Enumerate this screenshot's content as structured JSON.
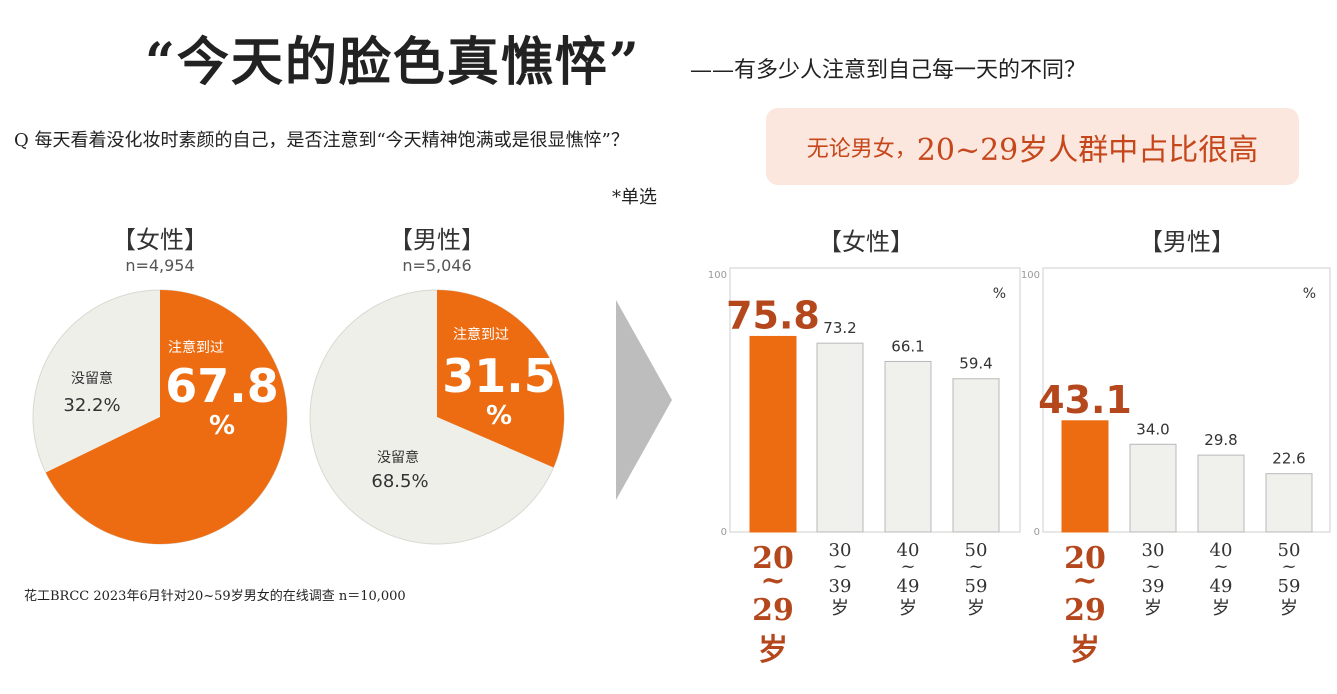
{
  "header": {
    "title": "“今天的脸色真憔悴”",
    "subtitle": "——有多少人注意到自己每一天的不同？"
  },
  "question": {
    "text": "Q   每天看着没化妆时素颜的自己，是否注意到“今天精神饱满或是很显憔悴”？",
    "note": "*单选"
  },
  "callout": {
    "prefix": "无论男女，",
    "highlight": "20~29岁人群中占比很高"
  },
  "source": "花工BRCC  2023年6月针对20~59岁男女的在线调查  n＝10,000",
  "colors": {
    "accent": "#ed6c12",
    "light": "#efefea",
    "bar_light": "#f0f0ec",
    "highlight_text": "#b5471c",
    "arrow": "#bdbdbd"
  },
  "chart_data": [
    {
      "type": "pie",
      "title": "【女性】",
      "subtitle": "n=4,954",
      "slices": [
        {
          "label": "注意到过",
          "value": 67.8,
          "display": "67.8",
          "unit": "%"
        },
        {
          "label": "没留意",
          "value": 32.2,
          "display": "32.2%"
        }
      ]
    },
    {
      "type": "pie",
      "title": "【男性】",
      "subtitle": "n=5,046",
      "slices": [
        {
          "label": "注意到过",
          "value": 31.5,
          "display": "31.5",
          "unit": "%"
        },
        {
          "label": "没留意",
          "value": 68.5,
          "display": "68.5%"
        }
      ]
    },
    {
      "type": "bar",
      "title": "【女性】",
      "unit_label": "%",
      "ylim": [
        0,
        100
      ],
      "yticks": [
        "100",
        "0"
      ],
      "categories": [
        {
          "lines": [
            "20",
            "~",
            "29",
            "岁"
          ],
          "highlight": true
        },
        {
          "lines": [
            "30",
            "~",
            "39",
            "岁"
          ],
          "highlight": false
        },
        {
          "lines": [
            "40",
            "~",
            "49",
            "岁"
          ],
          "highlight": false
        },
        {
          "lines": [
            "50",
            "~",
            "59",
            "岁"
          ],
          "highlight": false
        }
      ],
      "values": [
        75.8,
        73.2,
        66.1,
        59.4
      ],
      "labels": [
        "75.8",
        "73.2",
        "66.1",
        "59.4"
      ]
    },
    {
      "type": "bar",
      "title": "【男性】",
      "unit_label": "%",
      "ylim": [
        0,
        100
      ],
      "yticks": [
        "100",
        "0"
      ],
      "categories": [
        {
          "lines": [
            "20",
            "~",
            "29",
            "岁"
          ],
          "highlight": true
        },
        {
          "lines": [
            "30",
            "~",
            "39",
            "岁"
          ],
          "highlight": false
        },
        {
          "lines": [
            "40",
            "~",
            "49",
            "岁"
          ],
          "highlight": false
        },
        {
          "lines": [
            "50",
            "~",
            "59",
            "岁"
          ],
          "highlight": false
        }
      ],
      "values": [
        43.1,
        34.0,
        29.8,
        22.6
      ],
      "labels": [
        "43.1",
        "34.0",
        "29.8",
        "22.6"
      ]
    }
  ]
}
